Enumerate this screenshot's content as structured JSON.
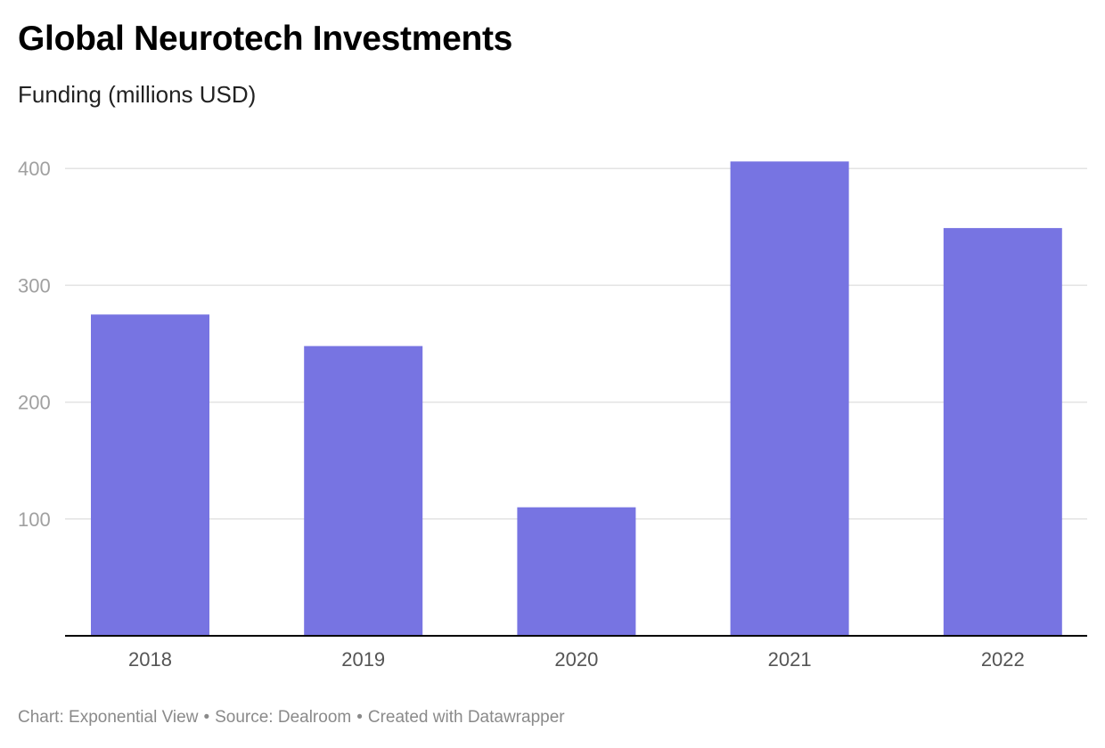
{
  "header": {
    "title": "Global Neurotech Investments",
    "subtitle": "Funding (millions USD)"
  },
  "footer": {
    "chart_credit": "Chart: Exponential View",
    "separator": "•",
    "source": "Source: Dealroom",
    "created_with": "Created with Datawrapper"
  },
  "colors": {
    "bar": "#7774e2",
    "grid": "#e3e3e3",
    "axis": "#000000"
  },
  "chart_data": {
    "type": "bar",
    "title": "Global Neurotech Investments",
    "subtitle": "Funding (millions USD)",
    "categories": [
      "2018",
      "2019",
      "2020",
      "2021",
      "2022"
    ],
    "values": [
      275,
      248,
      110,
      406,
      349
    ],
    "ylim": [
      0,
      400
    ],
    "yticks": [
      100,
      200,
      300,
      400
    ],
    "xlabel": "",
    "ylabel": "",
    "grid": true,
    "legend": "none"
  }
}
